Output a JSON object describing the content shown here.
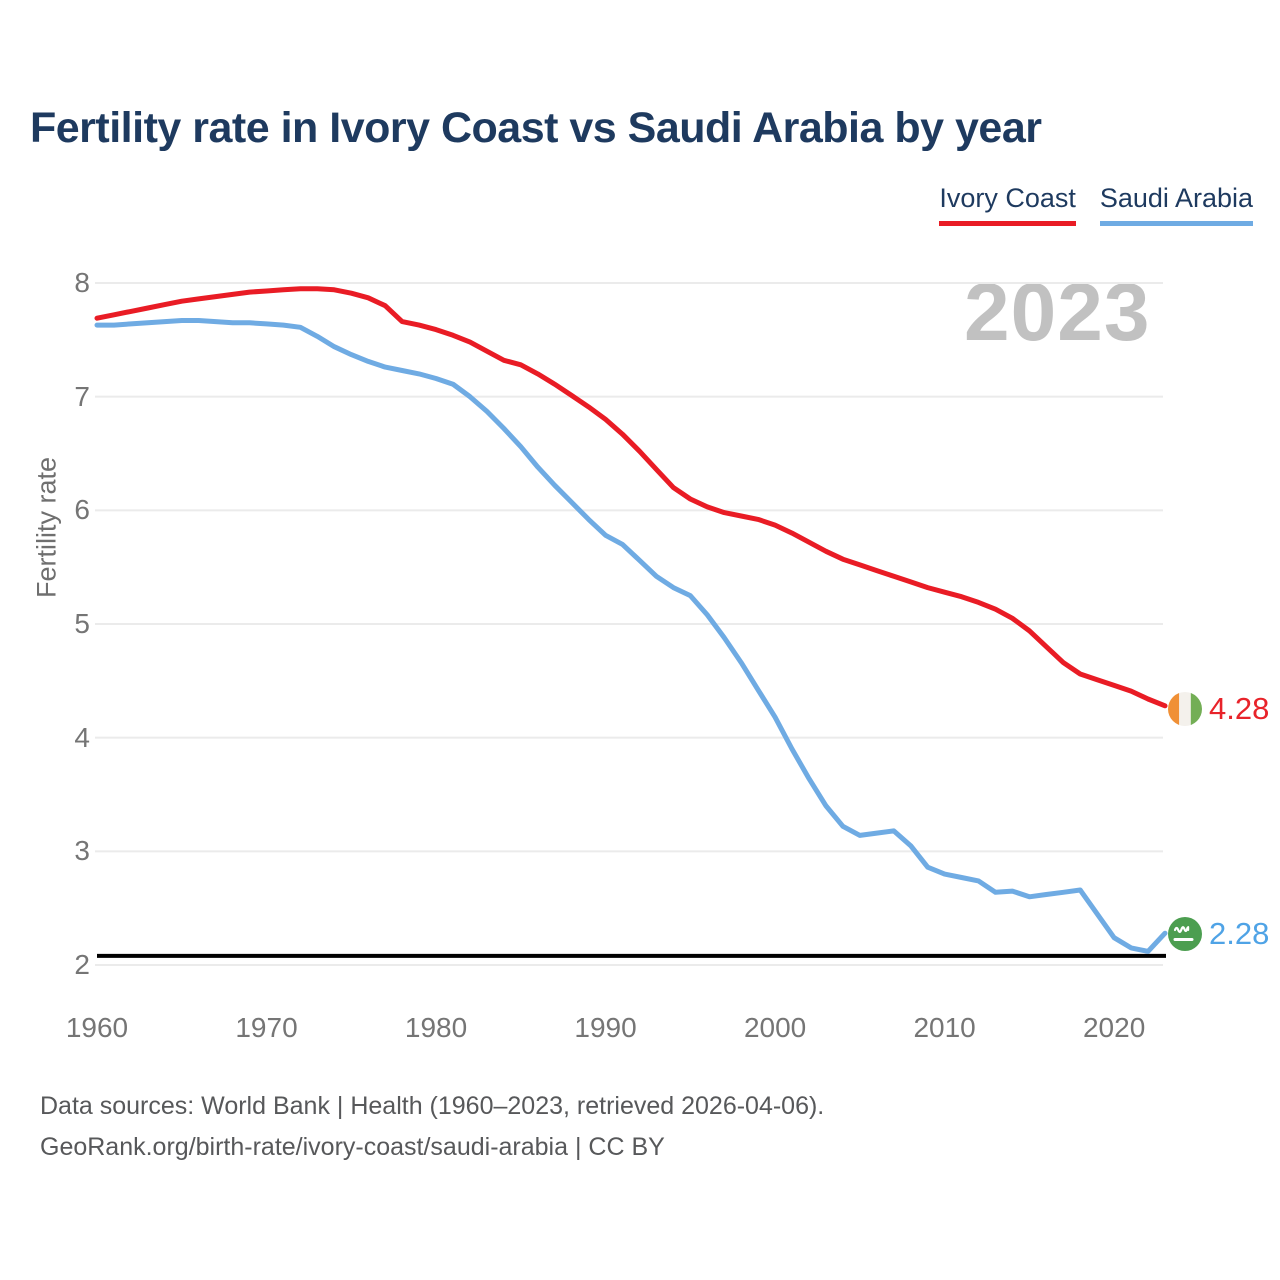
{
  "title": "Fertility rate in Ivory Coast vs Saudi Arabia by year",
  "watermark": "2023",
  "legend": [
    {
      "label": "Ivory Coast",
      "color": "#e91c25"
    },
    {
      "label": "Saudi Arabia",
      "color": "#6fabe3"
    }
  ],
  "end_labels": [
    {
      "value": "4.28",
      "color": "#e8232a",
      "flag": "ivory-coast-flag"
    },
    {
      "value": "2.28",
      "color": "#4fa3e6",
      "flag": "saudi-arabia-flag"
    }
  ],
  "footer": {
    "line1": "Data sources: World Bank | Health (1960–2023, retrieved 2026-04-06).",
    "line2": "GeoRank.org/birth-rate/ivory-coast/saudi-arabia | CC BY"
  },
  "chart_data": {
    "type": "line",
    "title": "Fertility rate in Ivory Coast vs Saudi Arabia by year",
    "xlabel": "",
    "ylabel": "Fertility rate",
    "ylim": [
      2,
      8
    ],
    "x_range": [
      1960,
      2023
    ],
    "yticks": [
      8,
      7,
      6,
      5,
      4,
      3,
      2
    ],
    "xticks": [
      1960,
      1970,
      1980,
      1990,
      2000,
      2010,
      2020
    ],
    "grid": "horizontal",
    "legend_position": "top-right",
    "reference_line": {
      "value": 2.08,
      "color": "#000000"
    },
    "years": [
      1960,
      1961,
      1962,
      1963,
      1964,
      1965,
      1966,
      1967,
      1968,
      1969,
      1970,
      1971,
      1972,
      1973,
      1974,
      1975,
      1976,
      1977,
      1978,
      1979,
      1980,
      1981,
      1982,
      1983,
      1984,
      1985,
      1986,
      1987,
      1988,
      1989,
      1990,
      1991,
      1992,
      1993,
      1994,
      1995,
      1996,
      1997,
      1998,
      1999,
      2000,
      2001,
      2002,
      2003,
      2004,
      2005,
      2006,
      2007,
      2008,
      2009,
      2010,
      2011,
      2012,
      2013,
      2014,
      2015,
      2016,
      2017,
      2018,
      2019,
      2020,
      2021,
      2022,
      2023
    ],
    "series": [
      {
        "name": "Ivory Coast",
        "color": "#e91c25",
        "end_value": 4.28,
        "values": [
          7.69,
          7.72,
          7.75,
          7.78,
          7.81,
          7.84,
          7.86,
          7.88,
          7.9,
          7.92,
          7.93,
          7.94,
          7.95,
          7.95,
          7.94,
          7.91,
          7.87,
          7.8,
          7.66,
          7.63,
          7.59,
          7.54,
          7.48,
          7.4,
          7.32,
          7.28,
          7.2,
          7.11,
          7.01,
          6.91,
          6.8,
          6.67,
          6.52,
          6.36,
          6.2,
          6.1,
          6.03,
          5.98,
          5.95,
          5.92,
          5.87,
          5.8,
          5.72,
          5.64,
          5.57,
          5.52,
          5.47,
          5.42,
          5.37,
          5.32,
          5.28,
          5.24,
          5.19,
          5.13,
          5.05,
          4.94,
          4.8,
          4.66,
          4.56,
          4.51,
          4.46,
          4.41,
          4.34,
          4.28
        ]
      },
      {
        "name": "Saudi Arabia",
        "color": "#6fabe3",
        "end_value": 2.28,
        "values": [
          7.63,
          7.63,
          7.64,
          7.65,
          7.66,
          7.67,
          7.67,
          7.66,
          7.65,
          7.65,
          7.64,
          7.63,
          7.61,
          7.53,
          7.44,
          7.37,
          7.31,
          7.26,
          7.23,
          7.2,
          7.16,
          7.11,
          7.0,
          6.87,
          6.72,
          6.56,
          6.38,
          6.22,
          6.07,
          5.92,
          5.78,
          5.7,
          5.56,
          5.42,
          5.32,
          5.25,
          5.08,
          4.88,
          4.66,
          4.42,
          4.18,
          3.9,
          3.64,
          3.4,
          3.22,
          3.14,
          3.16,
          3.18,
          3.05,
          2.86,
          2.8,
          2.77,
          2.74,
          2.64,
          2.65,
          2.6,
          2.62,
          2.64,
          2.66,
          2.45,
          2.24,
          2.15,
          2.12,
          2.28
        ]
      }
    ]
  }
}
